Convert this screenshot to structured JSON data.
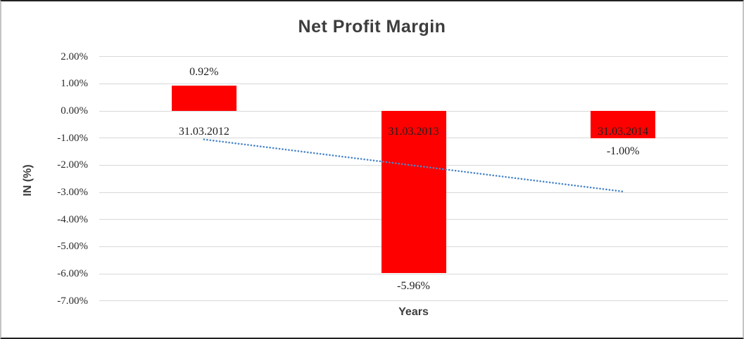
{
  "window": {
    "background": "#FFFFFF",
    "border_top_bottom_color": "#222222",
    "border_left_right_color": "#C4C4C4"
  },
  "chart_data": {
    "type": "bar",
    "title": "Net Profit Margin",
    "xlabel": "Years",
    "ylabel": "IN (%)",
    "categories": [
      "31.03.2012",
      "31.03.2013",
      "31.03.2014"
    ],
    "values": [
      0.92,
      -5.96,
      -1.0
    ],
    "value_labels": [
      "0.92%",
      "-5.96%",
      "-1.00%"
    ],
    "bar_color": "#FF0000",
    "ylim": [
      -7,
      2
    ],
    "ytick_step": 1,
    "yticks": [
      2,
      1,
      0,
      -1,
      -2,
      -3,
      -4,
      -5,
      -6,
      -7
    ],
    "ytick_labels": [
      "2.00%",
      "1.00%",
      "0.00%",
      "-1.00%",
      "-2.00%",
      "-3.00%",
      "-4.00%",
      "-5.00%",
      "-6.00%",
      "-7.00%"
    ],
    "grid": true,
    "gridline_color": "#D8D8D8",
    "legend": "none",
    "text_color": "#2B2B2B",
    "title_color": "#3D3D3D",
    "trendline": {
      "type": "linear",
      "style": "dotted",
      "color": "#4A86C8",
      "start_value": -1.05,
      "end_value": -2.97
    }
  }
}
